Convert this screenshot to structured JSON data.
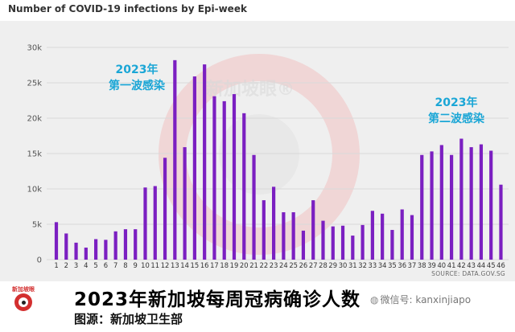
{
  "chart_data": {
    "type": "bar",
    "title": "Number of COVID-19 infections by Epi-week",
    "categories": [
      "1",
      "2",
      "3",
      "4",
      "5",
      "6",
      "7",
      "8",
      "9",
      "10",
      "11",
      "12",
      "13",
      "14",
      "15",
      "16",
      "17",
      "18",
      "19",
      "20",
      "21",
      "22",
      "23",
      "24",
      "25",
      "26",
      "27",
      "28",
      "29",
      "30",
      "31",
      "32",
      "33",
      "34",
      "35",
      "36",
      "37",
      "38",
      "39",
      "40",
      "41",
      "42",
      "43",
      "44",
      "45",
      "46"
    ],
    "values": [
      5300,
      3700,
      2400,
      1700,
      2900,
      2800,
      4000,
      4300,
      4300,
      10200,
      10400,
      14400,
      28200,
      15900,
      25900,
      27600,
      23100,
      22400,
      23400,
      20700,
      14800,
      8400,
      10300,
      6700,
      6700,
      4100,
      8400,
      5500,
      4700,
      4800,
      3400,
      4900,
      6900,
      6500,
      4200,
      7100,
      6300,
      14800,
      15300,
      16200,
      14800,
      17100,
      15900,
      16300,
      15400,
      10600
    ],
    "yticks": [
      "0",
      "5k",
      "10k",
      "15k",
      "20k",
      "25k",
      "30k"
    ],
    "ylim": [
      0,
      30000
    ],
    "bar_color": "#7b1fc1",
    "annotations": [
      {
        "lines": [
          "2023年",
          "第一波感染"
        ]
      },
      {
        "lines": [
          "2023年",
          "第二波感染"
        ]
      }
    ],
    "source": "SOURCE: DATA.GOV.SG",
    "watermark": "新加坡眼®"
  },
  "footer": {
    "logo_text": "新加坡眼",
    "main_caption": "2023年新加坡每周冠病确诊人数",
    "sub_caption": "图源：新加坡卫生部",
    "wechat_label": "微信号: kanxinjiapo"
  },
  "colors": {
    "bars": "#7b1fc1",
    "annotation": "#1aa6d6",
    "panel": "#efefef"
  }
}
